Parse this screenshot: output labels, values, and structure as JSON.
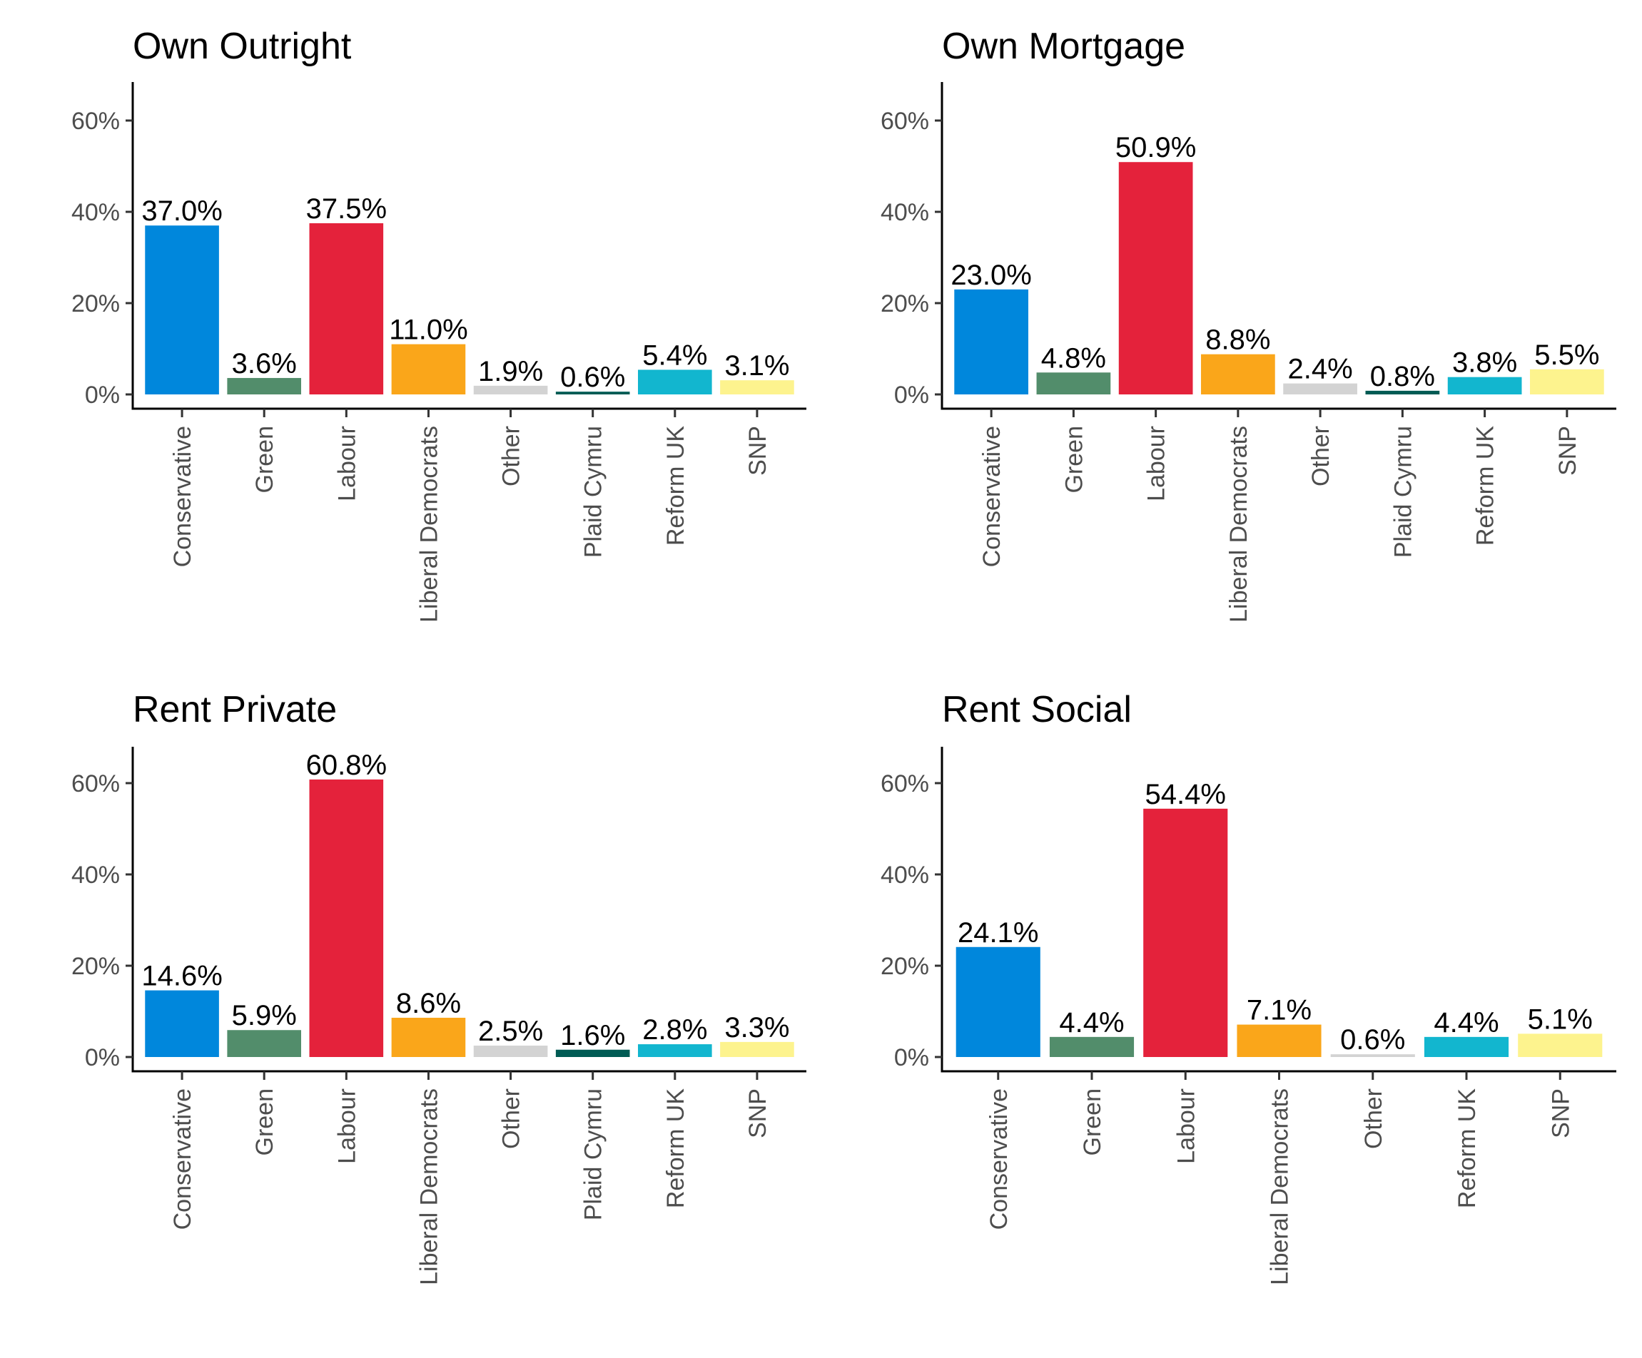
{
  "chart_data": [
    {
      "type": "bar",
      "title": "Own Outright",
      "categories": [
        "Conservative",
        "Green",
        "Labour",
        "Liberal Democrats",
        "Other",
        "Plaid Cymru",
        "Reform UK",
        "SNP"
      ],
      "values": [
        37.0,
        3.6,
        37.5,
        11.0,
        1.9,
        0.6,
        5.4,
        3.1
      ],
      "value_labels": [
        "37.0%",
        "3.6%",
        "37.5%",
        "11.0%",
        "1.9%",
        "0.6%",
        "5.4%",
        "3.1%"
      ],
      "yticks": [
        "0%",
        "20%",
        "40%",
        "60%"
      ],
      "ytick_values": [
        0,
        20,
        40,
        60
      ],
      "ylim": [
        0,
        68
      ],
      "xlabel": "",
      "ylabel": "",
      "grid": false,
      "legend": "none"
    },
    {
      "type": "bar",
      "title": "Own Mortgage",
      "categories": [
        "Conservative",
        "Green",
        "Labour",
        "Liberal Democrats",
        "Other",
        "Plaid Cymru",
        "Reform UK",
        "SNP"
      ],
      "values": [
        23.0,
        4.8,
        50.9,
        8.8,
        2.4,
        0.8,
        3.8,
        5.5
      ],
      "value_labels": [
        "23.0%",
        "4.8%",
        "50.9%",
        "8.8%",
        "2.4%",
        "0.8%",
        "3.8%",
        "5.5%"
      ],
      "yticks": [
        "0%",
        "20%",
        "40%",
        "60%"
      ],
      "ytick_values": [
        0,
        20,
        40,
        60
      ],
      "ylim": [
        0,
        68
      ],
      "xlabel": "",
      "ylabel": "",
      "grid": false,
      "legend": "none"
    },
    {
      "type": "bar",
      "title": "Rent Private",
      "categories": [
        "Conservative",
        "Green",
        "Labour",
        "Liberal Democrats",
        "Other",
        "Plaid Cymru",
        "Reform UK",
        "SNP"
      ],
      "values": [
        14.6,
        5.9,
        60.8,
        8.6,
        2.5,
        1.6,
        2.8,
        3.3
      ],
      "value_labels": [
        "14.6%",
        "5.9%",
        "60.8%",
        "8.6%",
        "2.5%",
        "1.6%",
        "2.8%",
        "3.3%"
      ],
      "yticks": [
        "0%",
        "20%",
        "40%",
        "60%"
      ],
      "ytick_values": [
        0,
        20,
        40,
        60
      ],
      "ylim": [
        0,
        68
      ],
      "xlabel": "",
      "ylabel": "",
      "grid": false,
      "legend": "none"
    },
    {
      "type": "bar",
      "title": "Rent Social",
      "categories": [
        "Conservative",
        "Green",
        "Labour",
        "Liberal Democrats",
        "Other",
        "Reform UK",
        "SNP"
      ],
      "values": [
        24.1,
        4.4,
        54.4,
        7.1,
        0.6,
        4.4,
        5.1
      ],
      "value_labels": [
        "24.1%",
        "4.4%",
        "54.4%",
        "7.1%",
        "0.6%",
        "4.4%",
        "5.1%"
      ],
      "yticks": [
        "0%",
        "20%",
        "40%",
        "60%"
      ],
      "ytick_values": [
        0,
        20,
        40,
        60
      ],
      "ylim": [
        0,
        68
      ],
      "xlabel": "",
      "ylabel": "",
      "grid": false,
      "legend": "none"
    }
  ],
  "party_colors": {
    "Conservative": "#0087dc",
    "Green": "#528d6b",
    "Labour": "#e4223b",
    "Liberal Democrats": "#faa61a",
    "Other": "#d3d3d3",
    "Plaid Cymru": "#005b54",
    "Reform UK": "#12b6cf",
    "SNP": "#fdf38e"
  }
}
